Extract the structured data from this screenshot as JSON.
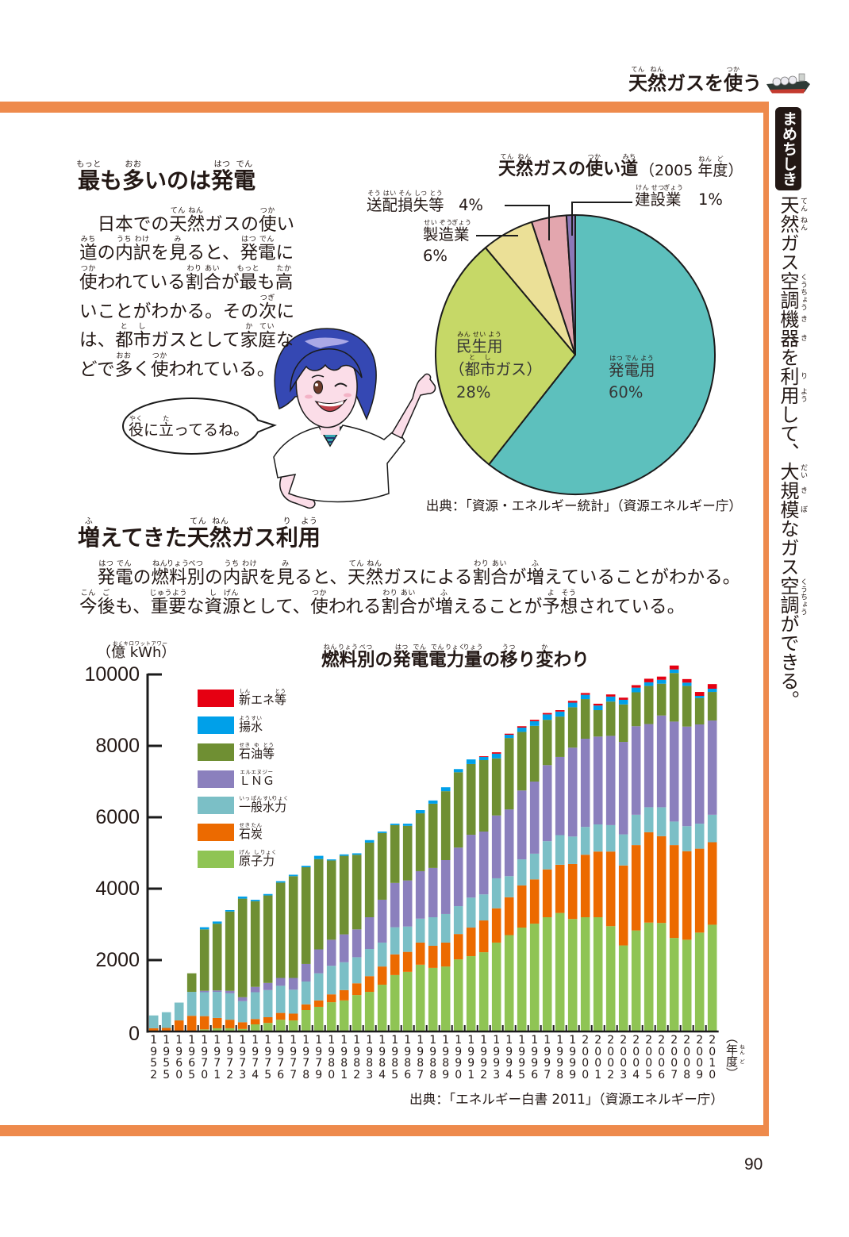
{
  "header": {
    "title": [
      [
        "天",
        "てん"
      ],
      [
        "然",
        "ねん"
      ],
      "ガスを",
      [
        "使",
        "つか"
      ],
      "う"
    ],
    "icon": "lng-tanker-ship-icon"
  },
  "sidebar": {
    "badge": "まめちしき",
    "tip": [
      [
        "天",
        "てん"
      ],
      [
        "然",
        "ねん"
      ],
      "ガス",
      [
        "空",
        "くう"
      ],
      [
        "調",
        "ちょう"
      ],
      [
        "機",
        "き"
      ],
      [
        "器",
        "き"
      ],
      "を",
      [
        "利",
        "り"
      ],
      [
        "用",
        "よう"
      ],
      "して、",
      [
        "大",
        "だい"
      ],
      [
        "規",
        "き"
      ],
      [
        "模",
        "ぼ"
      ],
      "なガス",
      [
        "空",
        "くう"
      ],
      [
        "調",
        "ちょう"
      ],
      "ができる。"
    ]
  },
  "section1": {
    "heading": [
      [
        "最",
        "もっと"
      ],
      "も",
      [
        "多",
        "おお"
      ],
      "いのは",
      [
        "発",
        "はつ"
      ],
      [
        "電",
        "でん"
      ]
    ],
    "body_lines": [
      [
        "　日本での",
        [
          "天",
          "てん"
        ],
        [
          "然",
          "ねん"
        ],
        "ガスの",
        [
          "使",
          "つか"
        ],
        "い"
      ],
      [
        [
          "道",
          "みち"
        ],
        "の",
        [
          "内",
          "うち"
        ],
        [
          "訳",
          "わけ"
        ],
        "を",
        [
          "見",
          "み"
        ],
        "ると、",
        [
          "発",
          "はつ"
        ],
        [
          "電",
          "でん"
        ],
        "に"
      ],
      [
        [
          "使",
          "つか"
        ],
        "われている",
        [
          "割",
          "わり"
        ],
        [
          "合",
          "あい"
        ],
        "が",
        [
          "最",
          "もっと"
        ],
        "も",
        [
          "高",
          "たか"
        ]
      ],
      [
        "いことがわかる。その",
        [
          "次",
          "つぎ"
        ],
        "に"
      ],
      [
        "は、",
        [
          "都",
          "と"
        ],
        [
          "市",
          "し"
        ],
        "ガスとして",
        [
          "家",
          "か"
        ],
        [
          "庭",
          "てい"
        ],
        "な"
      ],
      [
        "どで",
        [
          "多",
          "おお"
        ],
        "く",
        [
          "使",
          "つか"
        ],
        "われている。"
      ]
    ],
    "speech_bubble": [
      [
        "役",
        "やく"
      ],
      "に",
      [
        "立",
        "た"
      ],
      "ってるね。"
    ]
  },
  "section2": {
    "heading": [
      [
        "増",
        "ふ"
      ],
      "えてきた",
      [
        "天",
        "てん"
      ],
      [
        "然",
        "ねん"
      ],
      "ガス",
      [
        "利",
        "り"
      ],
      [
        "用",
        "よう"
      ]
    ],
    "body_lines": [
      [
        "　",
        [
          "発",
          "はつ"
        ],
        [
          "電",
          "でん"
        ],
        "の",
        [
          "燃",
          "ねん"
        ],
        [
          "料",
          "りょう"
        ],
        [
          "別",
          "べつ"
        ],
        "の",
        [
          "内",
          "うち"
        ],
        [
          "訳",
          "わけ"
        ],
        "を",
        [
          "見",
          "み"
        ],
        "ると、",
        [
          "天",
          "てん"
        ],
        [
          "然",
          "ねん"
        ],
        "ガスによる",
        [
          "割",
          "わり"
        ],
        [
          "合",
          "あい"
        ],
        "が",
        [
          "増",
          "ふ"
        ],
        "えていることがわかる。"
      ],
      [
        [
          "今",
          "こん"
        ],
        [
          "後",
          "ご"
        ],
        "も、",
        [
          "重要",
          "じゅうよう"
        ],
        "な",
        [
          "資",
          "し"
        ],
        [
          "源",
          "げん"
        ],
        "として、",
        [
          "使",
          "つか"
        ],
        "われる",
        [
          "割",
          "わり"
        ],
        [
          "合",
          "あい"
        ],
        "が",
        [
          "増",
          "ふ"
        ],
        "えることが",
        [
          "予",
          "よ"
        ],
        [
          "想",
          "そう"
        ],
        "されている。"
      ]
    ]
  },
  "chart_data": [
    {
      "type": "pie",
      "title": [
        [
          "天",
          "てん"
        ],
        [
          "然",
          "ねん"
        ],
        "ガスの",
        [
          "使",
          "つか"
        ],
        "い",
        [
          "道",
          "みち"
        ]
      ],
      "subtitle": [
        "（2005 ",
        [
          "年",
          "ねん"
        ],
        [
          "度",
          "ど"
        ],
        "）"
      ],
      "start": "top",
      "direction": "clockwise",
      "slices": [
        {
          "label": [
            [
              "発",
              "はつ"
            ],
            [
              "電",
              "でん"
            ],
            [
              "用",
              "よう"
            ]
          ],
          "value": 60,
          "value_label": "60%",
          "color": "#5dc0bd"
        },
        {
          "label": [
            [
              "民",
              "みん"
            ],
            [
              "生",
              "せい"
            ],
            [
              "用",
              "よう"
            ]
          ],
          "sublabel": [
            "（",
            [
              "都",
              "と"
            ],
            [
              "市",
              "し"
            ],
            "ガス）"
          ],
          "value": 28,
          "value_label": "28%",
          "color": "#c6d867"
        },
        {
          "label": [
            [
              "製",
              "せい"
            ],
            [
              "造",
              "ぞう"
            ],
            [
              "業",
              "ぎょう"
            ]
          ],
          "value": 6,
          "value_label": "6%",
          "color": "#ebe097"
        },
        {
          "label": [
            [
              "送",
              "そう"
            ],
            [
              "配",
              "はい"
            ],
            [
              "損",
              "そん"
            ],
            [
              "失",
              "しつ"
            ],
            [
              "等",
              "とう"
            ]
          ],
          "value": 4,
          "value_label": "4%",
          "color": "#e3a6ae"
        },
        {
          "label": [
            [
              "建",
              "けん"
            ],
            [
              "設",
              "せつ"
            ],
            [
              "業",
              "ぎょう"
            ]
          ],
          "value": 1,
          "value_label": "1%",
          "color": "#8c78b7"
        }
      ],
      "source": "出典：「資源・エネルギー統計」（資源エネルギー庁）"
    },
    {
      "type": "bar",
      "stacked": true,
      "title": [
        [
          "燃",
          "ねん"
        ],
        [
          "料",
          "りょう"
        ],
        [
          "別",
          "べつ"
        ],
        "の",
        [
          "発",
          "はつ"
        ],
        [
          "電",
          "でん"
        ],
        [
          "電",
          "でん"
        ],
        [
          "力",
          "りょく"
        ],
        [
          "量",
          "りょう"
        ],
        "の",
        [
          "移",
          "うつ"
        ],
        "り",
        [
          "変",
          "か"
        ],
        "わり"
      ],
      "ylabel": [
        "（",
        [
          "億",
          "おく"
        ],
        " ",
        [
          "kWh",
          "キロワットアワー"
        ],
        "）"
      ],
      "xlabel": [
        "（",
        [
          "年",
          "ねん"
        ],
        [
          "度",
          "ど"
        ],
        "）"
      ],
      "ylim": [
        0,
        10000
      ],
      "yticks": [
        0,
        2000,
        4000,
        6000,
        8000,
        10000
      ],
      "ytick_labels": [
        "0",
        "2000",
        "4000",
        "6000",
        "8000",
        "10000"
      ],
      "legend_position": "upper-left",
      "categories": [
        "1952",
        "1955",
        "1960",
        "1965",
        "1970",
        "1971",
        "1972",
        "1973",
        "1974",
        "1975",
        "1976",
        "1977",
        "1978",
        "1979",
        "1980",
        "1981",
        "1982",
        "1983",
        "1984",
        "1985",
        "1986",
        "1987",
        "1988",
        "1989",
        "1990",
        "1991",
        "1992",
        "1993",
        "1994",
        "1995",
        "1996",
        "1997",
        "1998",
        "1999",
        "2000",
        "2001",
        "2002",
        "2003",
        "2004",
        "2005",
        "2006",
        "2007",
        "2008",
        "2009",
        "2010"
      ],
      "series": [
        {
          "name": [
            [
              "新",
              "しん"
            ],
            "エネ",
            [
              "等",
              "とう"
            ]
          ],
          "color": "#e60012",
          "values": [
            0,
            0,
            0,
            0,
            0,
            0,
            0,
            0,
            0,
            0,
            0,
            0,
            0,
            0,
            0,
            0,
            0,
            0,
            0,
            0,
            0,
            0,
            0,
            0,
            0,
            0,
            20,
            40,
            30,
            40,
            40,
            40,
            40,
            50,
            50,
            50,
            60,
            60,
            70,
            100,
            90,
            110,
            100,
            110,
            130
          ]
        },
        {
          "name": [
            [
              "揚",
              "よう"
            ],
            [
              "水",
              "すい"
            ]
          ],
          "color": "#00a0e9",
          "values": [
            0,
            0,
            0,
            0,
            60,
            60,
            40,
            60,
            40,
            40,
            40,
            40,
            40,
            90,
            30,
            40,
            40,
            70,
            40,
            40,
            60,
            90,
            90,
            110,
            90,
            130,
            90,
            130,
            90,
            120,
            130,
            150,
            140,
            130,
            120,
            130,
            140,
            130,
            130,
            100,
            110,
            100,
            90,
            60,
            90
          ]
        },
        {
          "name": [
            [
              "石",
              "せき"
            ],
            [
              "油",
              "ゆ"
            ],
            [
              "等",
              "とう"
            ]
          ],
          "color": "#6f8f33",
          "values": [
            0,
            0,
            0,
            520,
            1720,
            1870,
            2220,
            2760,
            2400,
            2450,
            2670,
            2850,
            2710,
            2530,
            2220,
            2200,
            2090,
            2090,
            1870,
            1620,
            1530,
            1620,
            1800,
            1930,
            2110,
            1980,
            2000,
            1600,
            2000,
            1640,
            1560,
            1270,
            1130,
            1130,
            1110,
            740,
            960,
            1050,
            950,
            1070,
            890,
            1360,
            1140,
            740,
            800
          ]
        },
        {
          "name": [
            [
              "ＬＮＧ",
              "エルエヌジー"
            ]
          ],
          "color": "#8b80bd",
          "values": [
            0,
            0,
            0,
            0,
            40,
            40,
            70,
            110,
            150,
            200,
            220,
            330,
            490,
            670,
            730,
            780,
            780,
            890,
            1200,
            1240,
            1290,
            1330,
            1380,
            1510,
            1640,
            1760,
            1760,
            1760,
            1870,
            1930,
            2020,
            2130,
            2190,
            2490,
            2470,
            2460,
            2500,
            2590,
            2480,
            2330,
            2570,
            2800,
            2790,
            2780,
            2640
          ]
        },
        {
          "name": [
            [
              "一",
              "いっ"
            ],
            [
              "般",
              "ぱん"
            ],
            [
              "水",
              "すい"
            ],
            [
              "力",
              "りょく"
            ]
          ],
          "color": "#7bbfc6",
          "values": [
            360,
            440,
            500,
            670,
            670,
            730,
            740,
            590,
            750,
            760,
            760,
            670,
            640,
            760,
            800,
            780,
            730,
            760,
            670,
            760,
            710,
            670,
            800,
            800,
            780,
            840,
            730,
            840,
            590,
            730,
            720,
            790,
            830,
            770,
            780,
            760,
            740,
            870,
            850,
            700,
            810,
            660,
            700,
            700,
            770
          ]
        },
        {
          "name": [
            [
              "石",
              "せき"
            ],
            [
              "炭",
              "たん"
            ]
          ],
          "color": "#ec6a00",
          "values": [
            90,
            100,
            310,
            440,
            370,
            290,
            240,
            190,
            150,
            160,
            190,
            190,
            160,
            180,
            220,
            290,
            330,
            440,
            510,
            580,
            560,
            620,
            620,
            670,
            710,
            800,
            890,
            960,
            1060,
            1180,
            1240,
            1340,
            1350,
            1540,
            1750,
            1840,
            2090,
            2240,
            2390,
            2530,
            2430,
            2600,
            2480,
            2350,
            2310
          ]
        },
        {
          "name": [
            [
              "原",
              "げん"
            ],
            [
              "子",
              "し"
            ],
            [
              "力",
              "りょく"
            ]
          ],
          "color": "#8fc454",
          "values": [
            0,
            0,
            0,
            0,
            60,
            90,
            90,
            70,
            200,
            240,
            330,
            310,
            600,
            690,
            820,
            870,
            1020,
            1110,
            1310,
            1580,
            1670,
            1870,
            1780,
            1820,
            2020,
            2110,
            2220,
            2490,
            2700,
            2910,
            3020,
            3200,
            3320,
            3150,
            3200,
            3200,
            2950,
            2410,
            2830,
            3050,
            3040,
            2620,
            2570,
            2770,
            2990
          ]
        }
      ],
      "source": "出典：「エネルギー白書 2011」（資源エネルギー庁）"
    }
  ],
  "colors": {
    "frame": "#ee8a4c",
    "text": "#231815",
    "badge": "#231815"
  },
  "page_number": "90"
}
